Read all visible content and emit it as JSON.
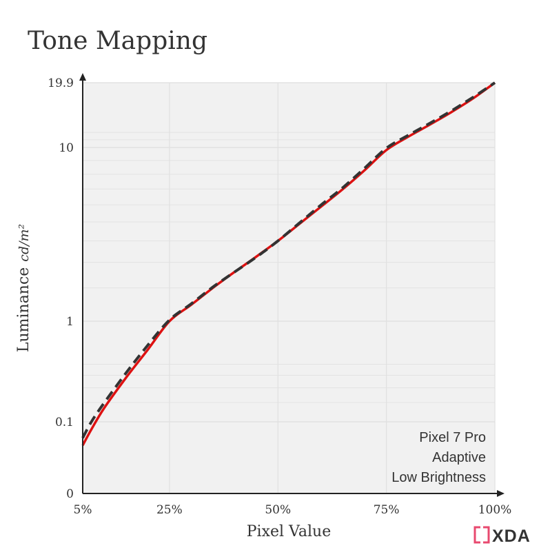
{
  "chart_data": {
    "type": "line",
    "title": "Tone Mapping",
    "xlabel": "Pixel Value",
    "ylabel_text": "Luminance",
    "ylabel_unit": "cd/m²",
    "x_scale": "linear",
    "y_scale": "custom (square-root-like)",
    "xlim": [
      5,
      100
    ],
    "ylim": [
      0,
      19.9
    ],
    "grid": true,
    "x_ticks": [
      {
        "value": 5,
        "label": "5%"
      },
      {
        "value": 25,
        "label": "25%"
      },
      {
        "value": 50,
        "label": "50%"
      },
      {
        "value": 75,
        "label": "75%"
      },
      {
        "value": 100,
        "label": "100%"
      }
    ],
    "y_ticks": [
      {
        "value": 0,
        "label": "0"
      },
      {
        "value": 0.1,
        "label": "0.1"
      },
      {
        "value": 1,
        "label": "1"
      },
      {
        "value": 10,
        "label": "10"
      },
      {
        "value": 19.9,
        "label": "19.9"
      }
    ],
    "y_minor_gridlines": [
      0.2,
      0.3,
      0.4,
      0.5,
      2,
      3,
      4,
      5,
      6,
      7,
      8,
      9,
      11,
      12
    ],
    "series": [
      {
        "style": "solid",
        "color": "#dd1111",
        "x": [
          5,
          7,
          10,
          15,
          20,
          25,
          30,
          35,
          40,
          45,
          50,
          55,
          60,
          65,
          70,
          75,
          80,
          85,
          90,
          95,
          100
        ],
        "y": [
          0.045,
          0.08,
          0.17,
          0.38,
          0.65,
          1.0,
          1.45,
          2.0,
          2.6,
          3.25,
          4.0,
          4.9,
          5.9,
          7.0,
          8.3,
          9.8,
          11.4,
          13.1,
          15.0,
          17.2,
          19.9
        ]
      },
      {
        "style": "dashed",
        "color": "#333333",
        "x": [
          5,
          7,
          10,
          15,
          20,
          25,
          30,
          35,
          40,
          45,
          50,
          55,
          60,
          65,
          70,
          75,
          80,
          85,
          90,
          95,
          100
        ],
        "y": [
          0.06,
          0.1,
          0.2,
          0.42,
          0.7,
          1.03,
          1.48,
          2.03,
          2.6,
          3.23,
          4.0,
          4.95,
          6.0,
          7.1,
          8.45,
          9.95,
          11.6,
          13.3,
          15.2,
          17.4,
          19.9
        ]
      }
    ],
    "annotation_lines": [
      "Pixel 7 Pro",
      "Adaptive",
      "Low Brightness"
    ]
  },
  "watermark": {
    "text": "XDA",
    "bracket_color": "#e8496f"
  }
}
